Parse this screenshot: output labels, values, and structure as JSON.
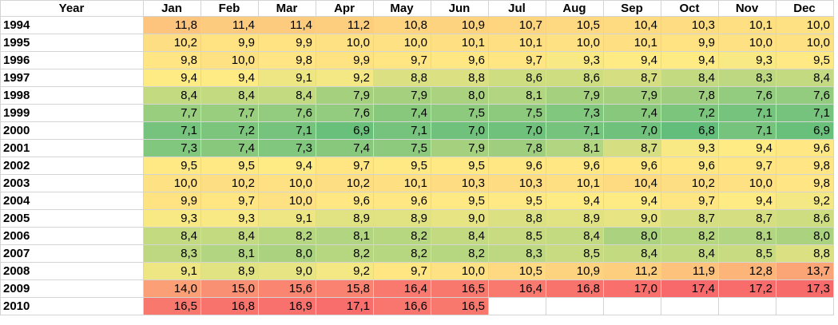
{
  "header": {
    "year_label": "Year",
    "months": [
      "Jan",
      "Feb",
      "Mar",
      "Apr",
      "May",
      "Jun",
      "Jul",
      "Aug",
      "Sep",
      "Oct",
      "Nov",
      "Dec"
    ]
  },
  "rows": [
    {
      "year": "1994",
      "values": [
        "11,8",
        "11,4",
        "11,4",
        "11,2",
        "10,8",
        "10,9",
        "10,7",
        "10,5",
        "10,4",
        "10,3",
        "10,1",
        "10,0"
      ]
    },
    {
      "year": "1995",
      "values": [
        "10,2",
        "9,9",
        "9,9",
        "10,0",
        "10,0",
        "10,1",
        "10,1",
        "10,0",
        "10,1",
        "9,9",
        "10,0",
        "10,0"
      ]
    },
    {
      "year": "1996",
      "values": [
        "9,8",
        "10,0",
        "9,8",
        "9,9",
        "9,7",
        "9,6",
        "9,7",
        "9,3",
        "9,4",
        "9,4",
        "9,3",
        "9,5"
      ]
    },
    {
      "year": "1997",
      "values": [
        "9,4",
        "9,4",
        "9,1",
        "9,2",
        "8,8",
        "8,8",
        "8,6",
        "8,6",
        "8,7",
        "8,4",
        "8,3",
        "8,4"
      ]
    },
    {
      "year": "1998",
      "values": [
        "8,4",
        "8,4",
        "8,4",
        "7,9",
        "7,9",
        "8,0",
        "8,1",
        "7,9",
        "7,9",
        "7,8",
        "7,6",
        "7,6"
      ]
    },
    {
      "year": "1999",
      "values": [
        "7,7",
        "7,7",
        "7,6",
        "7,6",
        "7,4",
        "7,5",
        "7,5",
        "7,3",
        "7,4",
        "7,2",
        "7,1",
        "7,1"
      ]
    },
    {
      "year": "2000",
      "values": [
        "7,1",
        "7,2",
        "7,1",
        "6,9",
        "7,1",
        "7,0",
        "7,0",
        "7,1",
        "7,0",
        "6,8",
        "7,1",
        "6,9"
      ]
    },
    {
      "year": "2001",
      "values": [
        "7,3",
        "7,4",
        "7,3",
        "7,4",
        "7,5",
        "7,9",
        "7,8",
        "8,1",
        "8,7",
        "9,3",
        "9,4",
        "9,6"
      ]
    },
    {
      "year": "2002",
      "values": [
        "9,5",
        "9,5",
        "9,4",
        "9,7",
        "9,5",
        "9,5",
        "9,6",
        "9,6",
        "9,6",
        "9,6",
        "9,7",
        "9,8"
      ]
    },
    {
      "year": "2003",
      "values": [
        "10,0",
        "10,2",
        "10,0",
        "10,2",
        "10,1",
        "10,3",
        "10,3",
        "10,1",
        "10,4",
        "10,2",
        "10,0",
        "9,8"
      ]
    },
    {
      "year": "2004",
      "values": [
        "9,9",
        "9,7",
        "10,0",
        "9,6",
        "9,6",
        "9,5",
        "9,5",
        "9,4",
        "9,4",
        "9,7",
        "9,4",
        "9,2"
      ]
    },
    {
      "year": "2005",
      "values": [
        "9,3",
        "9,3",
        "9,1",
        "8,9",
        "8,9",
        "9,0",
        "8,8",
        "8,9",
        "9,0",
        "8,7",
        "8,7",
        "8,6"
      ]
    },
    {
      "year": "2006",
      "values": [
        "8,4",
        "8,4",
        "8,2",
        "8,1",
        "8,2",
        "8,4",
        "8,5",
        "8,4",
        "8,0",
        "8,2",
        "8,1",
        "8,0"
      ]
    },
    {
      "year": "2007",
      "values": [
        "8,3",
        "8,1",
        "8,0",
        "8,2",
        "8,2",
        "8,2",
        "8,3",
        "8,5",
        "8,4",
        "8,4",
        "8,5",
        "8,8"
      ]
    },
    {
      "year": "2008",
      "values": [
        "9,1",
        "8,9",
        "9,0",
        "9,2",
        "9,7",
        "10,0",
        "10,5",
        "10,9",
        "11,2",
        "11,9",
        "12,8",
        "13,7"
      ]
    },
    {
      "year": "2009",
      "values": [
        "14,0",
        "15,0",
        "15,6",
        "15,8",
        "16,4",
        "16,5",
        "16,4",
        "16,8",
        "17,0",
        "17,4",
        "17,2",
        "17,3"
      ]
    },
    {
      "year": "2010",
      "values": [
        "16,5",
        "16,8",
        "16,9",
        "17,1",
        "16,6",
        "16,5"
      ]
    }
  ],
  "color_scale": {
    "low": "#63be7b",
    "mid": "#ffeb84",
    "high": "#f8696b"
  }
}
